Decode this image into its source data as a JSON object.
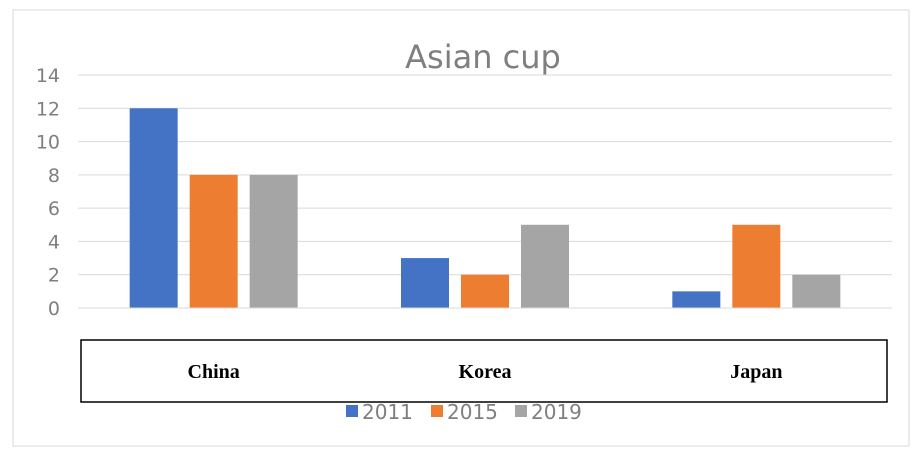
{
  "chart_data": {
    "type": "bar",
    "title": "Asian cup",
    "categories": [
      "China",
      "Korea",
      "Japan"
    ],
    "series": [
      {
        "name": "2011",
        "values": [
          12,
          3,
          1
        ],
        "color": "#4472c4"
      },
      {
        "name": "2015",
        "values": [
          8,
          2,
          5
        ],
        "color": "#ed7d31"
      },
      {
        "name": "2019",
        "values": [
          8,
          5,
          2
        ],
        "color": "#a5a5a5"
      }
    ],
    "yticks": [
      "0",
      "2",
      "4",
      "6",
      "8",
      "10",
      "12",
      "14"
    ],
    "ylim": [
      0,
      14
    ],
    "xlabel": "",
    "ylabel": "",
    "grid": true,
    "legend_position": "bottom"
  }
}
